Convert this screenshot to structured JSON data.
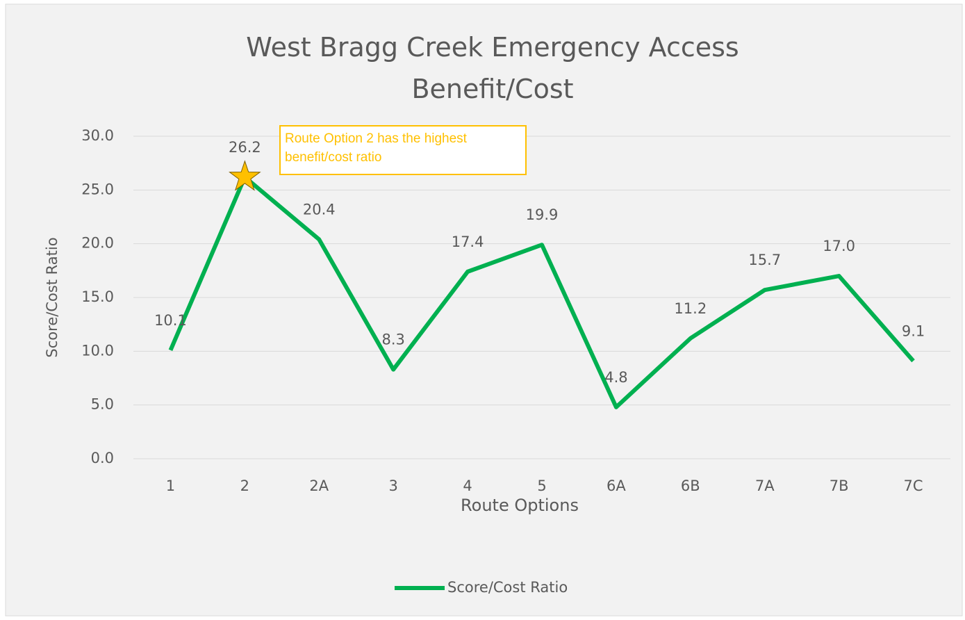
{
  "chart_data": {
    "type": "line",
    "title": "West Bragg Creek Emergency Access Benefit/Cost",
    "x_label": "Route Options",
    "y_label": "Score/Cost Ratio",
    "annotation": "Route Option 2 has the highest benefit/cost ratio",
    "categories": [
      "1",
      "2",
      "2A",
      "3",
      "4",
      "5",
      "6A",
      "6B",
      "7A",
      "7B",
      "7C"
    ],
    "series": [
      {
        "name": "Score/Cost Ratio",
        "color": "#00b050",
        "values": [
          10.1,
          26.2,
          20.4,
          8.3,
          17.4,
          19.9,
          4.8,
          11.2,
          15.7,
          17.0,
          9.1
        ],
        "value_labels": [
          "10.1",
          "26.2",
          "20.4",
          "8.3",
          "17.4",
          "19.9",
          "4.8",
          "11.2",
          "15.7",
          "17.0",
          "9.1"
        ]
      }
    ],
    "ylim": [
      0,
      30
    ],
    "yticks": [
      {
        "value": 0,
        "label": "0.0"
      },
      {
        "value": 5,
        "label": "5.0"
      },
      {
        "value": 10,
        "label": "10.0"
      },
      {
        "value": 15,
        "label": "15.0"
      },
      {
        "value": 20,
        "label": "20.0"
      },
      {
        "value": 25,
        "label": "25.0"
      },
      {
        "value": 30,
        "label": "30.0"
      }
    ],
    "grid": true,
    "legend": "bottom"
  }
}
